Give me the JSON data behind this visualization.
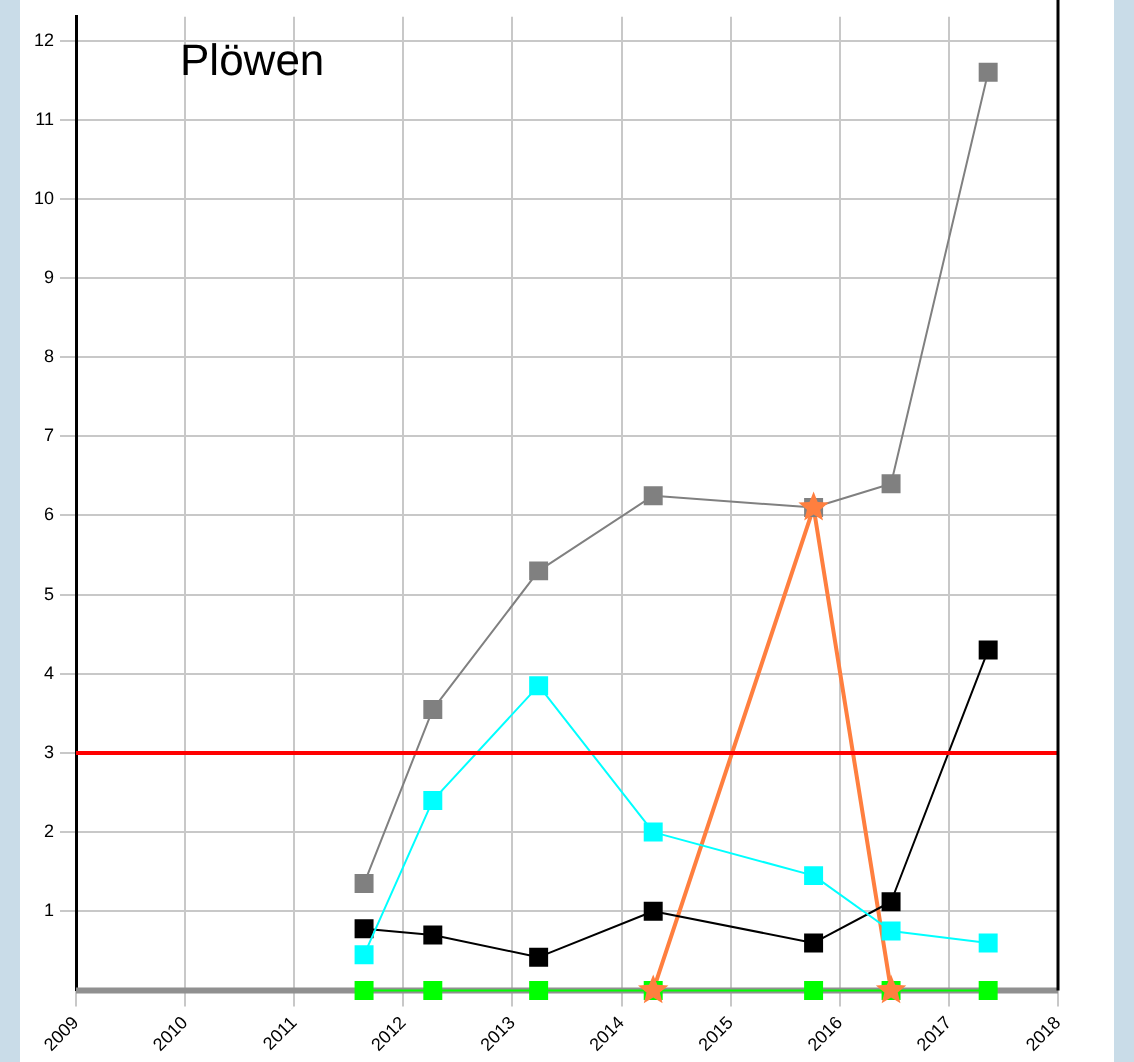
{
  "chart_data": {
    "type": "line",
    "title": "Plöwen",
    "x": [
      2011.64,
      2012.27,
      2013.24,
      2014.29,
      2015.76,
      2016.47,
      2017.36
    ],
    "series": [
      {
        "color": "#808080",
        "values": [
          1.35,
          3.55,
          5.3,
          6.25,
          6.1,
          6.4,
          11.6
        ]
      },
      {
        "color": "#00ffff",
        "values": [
          0.45,
          2.4,
          3.85,
          2.0,
          1.45,
          0.75,
          0.6
        ]
      },
      {
        "color": "#000000",
        "values": [
          0.78,
          0.7,
          0.42,
          1.0,
          0.6,
          1.12,
          4.3
        ]
      },
      {
        "color": "#00ff00",
        "values": [
          0,
          0,
          0,
          0,
          0,
          0,
          0
        ]
      },
      {
        "color": "#ff7f3f",
        "marker": "star",
        "values": [
          null,
          null,
          null,
          0,
          6.1,
          0,
          null
        ]
      }
    ],
    "xlim": [
      2009,
      2018
    ],
    "xticks": [
      2009,
      2010,
      2011,
      2012,
      2013,
      2014,
      2015,
      2016,
      2017,
      2018
    ],
    "ylim": [
      0,
      12.3
    ],
    "yticks": [
      1,
      2,
      3,
      4,
      5,
      6,
      7,
      8,
      9,
      10,
      11,
      12
    ],
    "ref_lines": [
      {
        "axis": "y",
        "value": 3,
        "color": "#ff0000"
      }
    ],
    "grid": true,
    "legend": false,
    "marker": "square",
    "line_style": "solid"
  }
}
